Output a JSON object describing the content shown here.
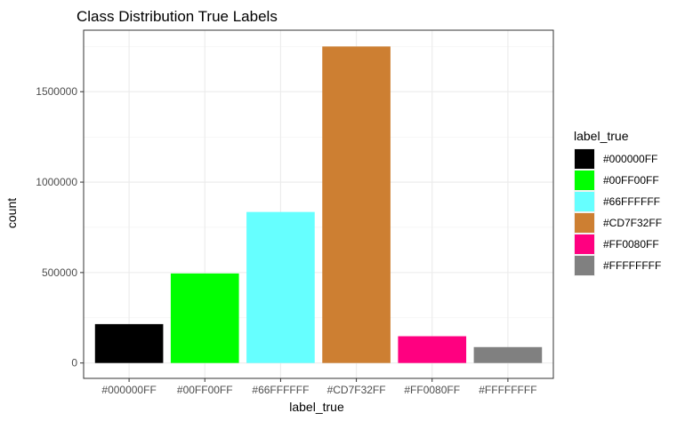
{
  "chart_data": {
    "type": "bar",
    "title": "Class Distribution True Labels",
    "xlabel": "label_true",
    "ylabel": "count",
    "categories": [
      "#000000FF",
      "#00FF00FF",
      "#66FFFFFF",
      "#CD7F32FF",
      "#FF0080FF",
      "#FFFFFFFF"
    ],
    "values": [
      215000,
      495000,
      835000,
      1750000,
      148000,
      88000
    ],
    "colors": [
      "#000000",
      "#00FF00",
      "#66FFFF",
      "#CD7F32",
      "#FF0080",
      "#808080"
    ],
    "ylim": [
      -85000,
      1840000
    ],
    "yticks": [
      0,
      500000,
      1000000,
      1500000
    ],
    "ytick_labels": [
      "0",
      "500000",
      "1000000",
      "1500000"
    ],
    "grid": true,
    "legend": {
      "title": "label_true",
      "placement": "right",
      "entries": [
        "#000000FF",
        "#00FF00FF",
        "#66FFFFFF",
        "#CD7F32FF",
        "#FF0080FF",
        "#FFFFFFFF"
      ]
    }
  }
}
